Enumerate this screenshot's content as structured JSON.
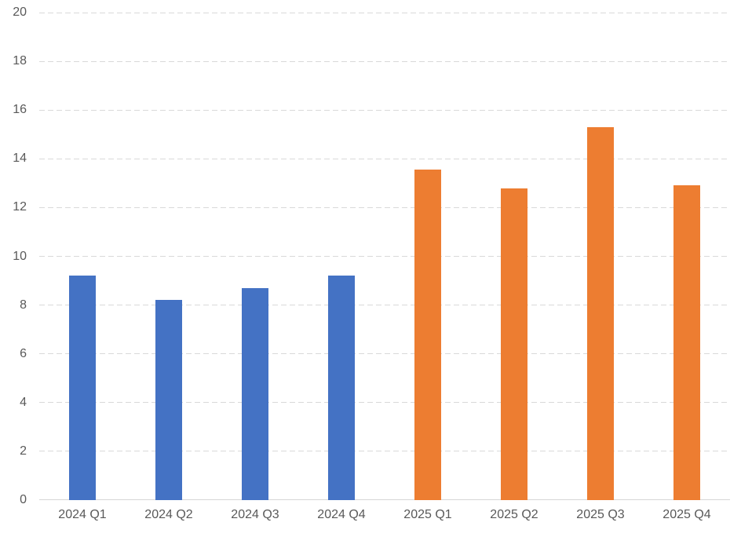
{
  "chart_data": {
    "type": "bar",
    "title": "",
    "xlabel": "",
    "ylabel": "",
    "categories": [
      "2024 Q1",
      "2024 Q2",
      "2024 Q3",
      "2024 Q4",
      "2025 Q1",
      "2025 Q2",
      "2025 Q3",
      "2025 Q4"
    ],
    "values": [
      9.2,
      8.2,
      8.7,
      9.2,
      13.55,
      12.8,
      15.3,
      12.9
    ],
    "bar_colors": [
      "#4472C4",
      "#4472C4",
      "#4472C4",
      "#4472C4",
      "#ED7D31",
      "#ED7D31",
      "#ED7D31",
      "#ED7D31"
    ],
    "ylim": [
      0,
      20
    ],
    "y_ticks": [
      0,
      2,
      4,
      6,
      8,
      10,
      12,
      14,
      16,
      18,
      20
    ],
    "grid": "dashed horizontal",
    "legend": "none",
    "colors": {
      "series_2024": "#4472C4",
      "series_2025": "#ED7D31",
      "gridline": "#D9D9D9",
      "axis_line": "#D6D6D6",
      "tick_text": "#595959",
      "background": "#FFFFFF"
    }
  }
}
